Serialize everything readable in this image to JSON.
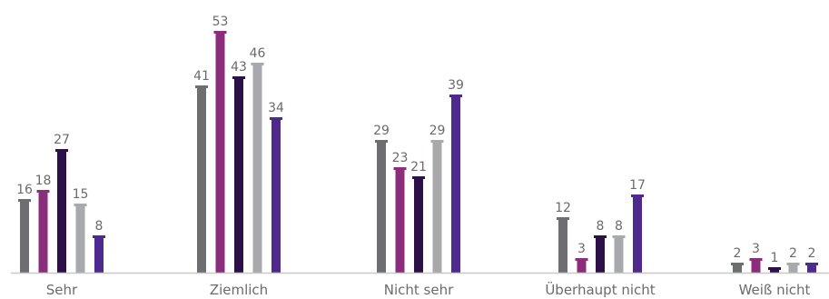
{
  "chart_data": {
    "type": "bar",
    "categories": [
      "Sehr",
      "Ziemlich",
      "Nicht sehr",
      "Überhaupt nicht",
      "Weiß nicht"
    ],
    "series": [
      {
        "values": [
          16,
          41,
          29,
          12,
          2
        ],
        "color": "#6d6e71"
      },
      {
        "values": [
          18,
          53,
          23,
          3,
          3
        ],
        "color": "#8a2d7a"
      },
      {
        "values": [
          27,
          43,
          21,
          8,
          1
        ],
        "color": "#2b1147"
      },
      {
        "values": [
          15,
          46,
          29,
          8,
          2
        ],
        "color": "#a7a9ac"
      },
      {
        "values": [
          8,
          34,
          39,
          17,
          2
        ],
        "color": "#4e2a8e"
      }
    ],
    "value_labels": [
      [
        "16",
        "41",
        "29",
        "12",
        "2"
      ],
      [
        "18",
        "53",
        "23",
        "3",
        "3"
      ],
      [
        "27",
        "43",
        "21",
        "8",
        "1"
      ],
      [
        "15",
        "46",
        "29",
        "8",
        "2"
      ],
      [
        "8",
        "34",
        "39",
        "17",
        "2"
      ]
    ],
    "ylim": [
      0,
      53
    ],
    "grid": false,
    "legend": "none",
    "axis_color": "#c8c8c8"
  }
}
